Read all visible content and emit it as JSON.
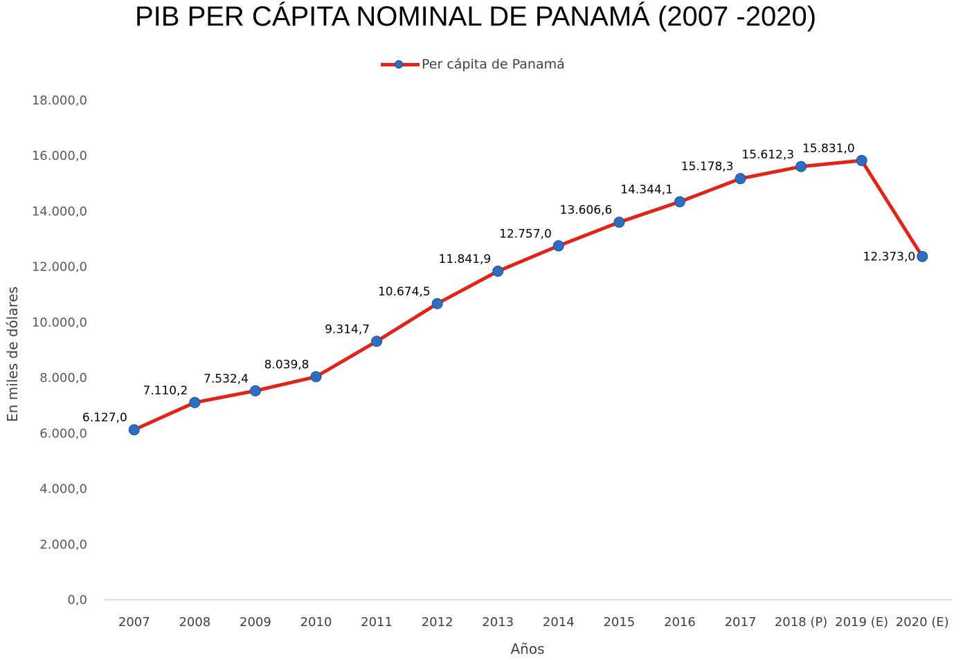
{
  "chart_data": {
    "type": "line",
    "title": "PIB PER CÁPITA NOMINAL DE PANAMÁ (2007  -2020)",
    "xlabel": "Años",
    "ylabel": "En miles de dólares",
    "ylim": [
      0,
      18000
    ],
    "y_ticks": [
      "0,0",
      "2.000,0",
      "4.000,0",
      "6.000,0",
      "8.000,0",
      "10.000,0",
      "12.000,0",
      "14.000,0",
      "16.000,0",
      "18.000,0"
    ],
    "grid": false,
    "legend_position": "top",
    "categories": [
      "2007",
      "2008",
      "2009",
      "2010",
      "2011",
      "2012",
      "2013",
      "2014",
      "2015",
      "2016",
      "2017",
      "2018 (P)",
      "2019 (E)",
      "2020 (E)"
    ],
    "series": [
      {
        "name": "Per cápita de Panamá",
        "color": "#e2231a",
        "marker_color": "#2e6dbf",
        "values": [
          6127.0,
          7110.2,
          7532.4,
          8039.8,
          9314.7,
          10674.5,
          11841.9,
          12757.0,
          13606.6,
          14344.1,
          15178.3,
          15612.3,
          15831.0,
          12373.0
        ],
        "data_labels": [
          "6.127,0",
          "7.110,2",
          "7.532,4",
          "8.039,8",
          "9.314,7",
          "10.674,5",
          "11.841,9",
          "12.757,0",
          "13.606,6",
          "14.344,1",
          "15.178,3",
          "15.612,3",
          "15.831,0",
          "12.373,0"
        ]
      }
    ]
  }
}
